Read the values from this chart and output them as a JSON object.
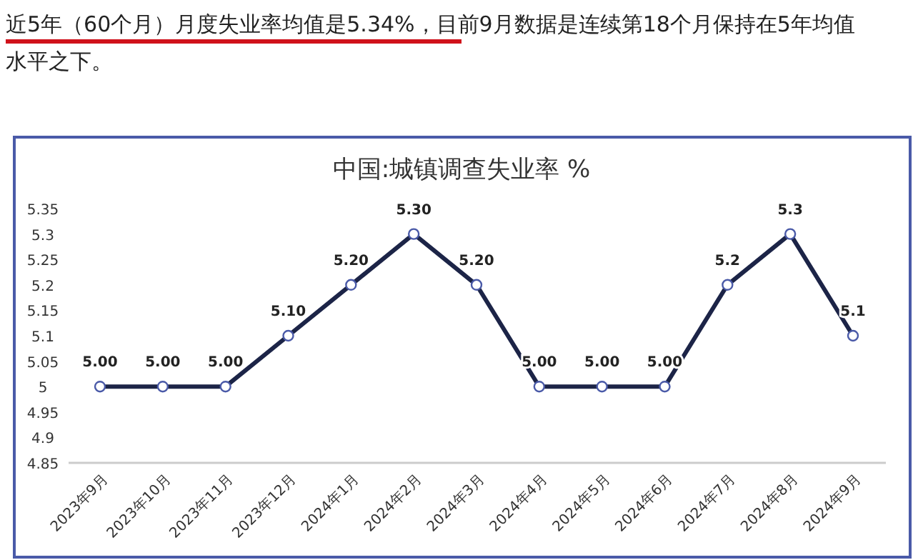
{
  "chart_data": {
    "type": "line",
    "title": "中国:城镇调查失业率 %",
    "annotations": [
      "近5年（60个月）月度失业率均值是5.34%，目前9月数据是连续第18个月保持在5年均值水平之下。"
    ],
    "categories": [
      "2023年9月",
      "2023年10月",
      "2023年11月",
      "2023年12月",
      "2024年1月",
      "2024年2月",
      "2024年3月",
      "2024年4月",
      "2024年5月",
      "2024年6月",
      "2024年7月",
      "2024年8月",
      "2024年9月"
    ],
    "series": [
      {
        "color": "#1c2447",
        "values": [
          5.0,
          5.0,
          5.0,
          5.1,
          5.2,
          5.3,
          5.2,
          5.0,
          5.0,
          5.0,
          5.2,
          5.3,
          5.1
        ],
        "value_labels": [
          "5.00",
          "5.00",
          "5.00",
          "5.10",
          "5.20",
          "5.30",
          "5.20",
          "5.00",
          "5.00",
          "5.00",
          "5.2",
          "5.3",
          "5.1"
        ]
      }
    ],
    "ylim": [
      4.85,
      5.35
    ],
    "yticks": [
      4.85,
      4.9,
      4.95,
      5,
      5.05,
      5.1,
      5.15,
      5.2,
      5.25,
      5.3,
      5.35
    ],
    "marker": "circle",
    "line_style": "solid",
    "grid": false
  }
}
